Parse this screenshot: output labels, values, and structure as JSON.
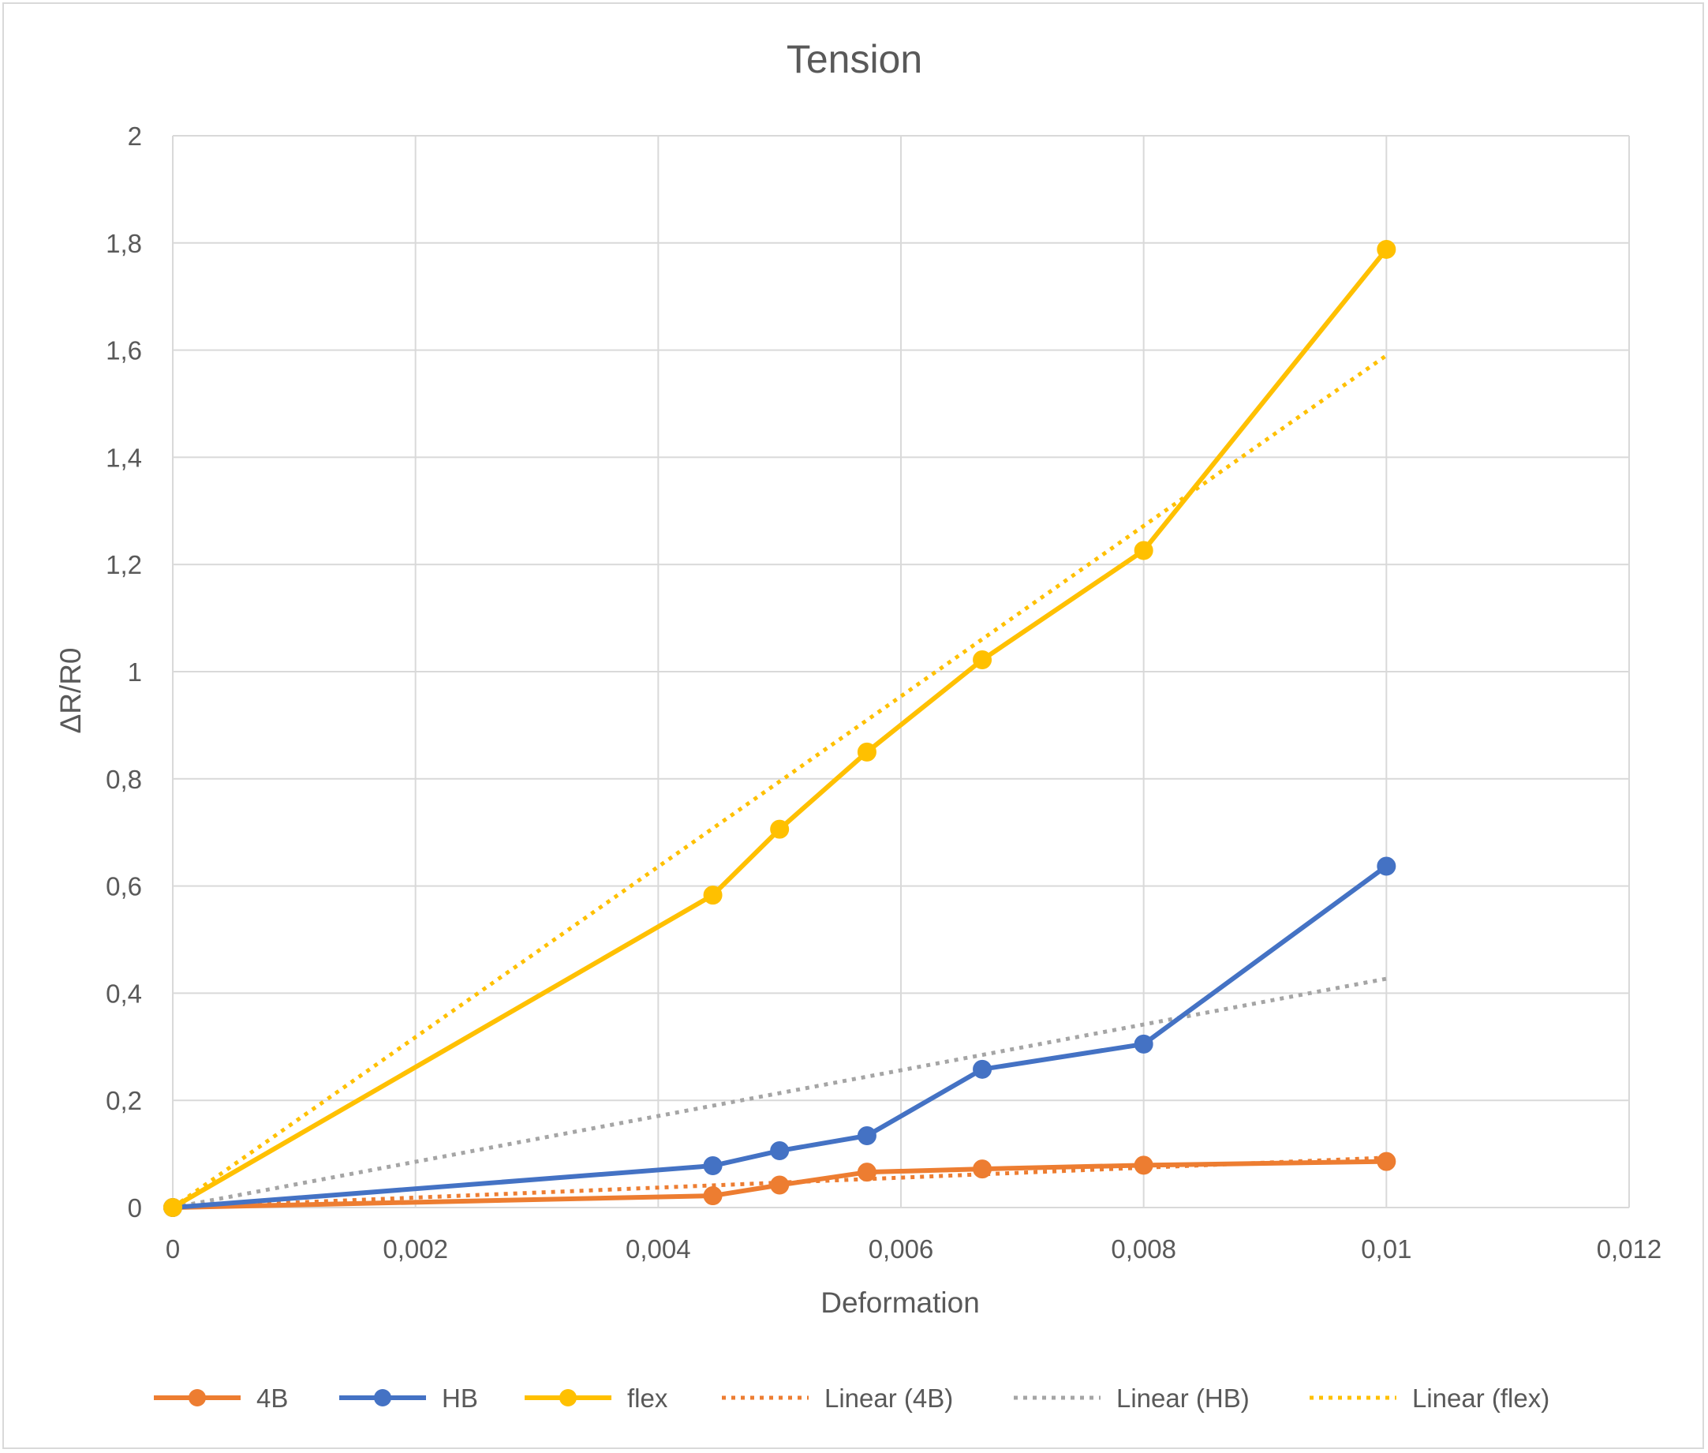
{
  "chart_data": {
    "type": "line",
    "title": "Tension",
    "xlabel": "Deformation",
    "ylabel": "ΔR/R0",
    "xlim": [
      0,
      0.012
    ],
    "ylim": [
      0,
      2
    ],
    "x_ticks": [
      0,
      0.002,
      0.004,
      0.006,
      0.008,
      0.01,
      0.012
    ],
    "x_tick_labels": [
      "0",
      "0,002",
      "0,004",
      "0,006",
      "0,008",
      "0,01",
      "0,012"
    ],
    "y_ticks": [
      0,
      0.2,
      0.4,
      0.6,
      0.8,
      1,
      1.2,
      1.4,
      1.6,
      1.8,
      2
    ],
    "y_tick_labels": [
      "0",
      "0,2",
      "0,4",
      "0,6",
      "0,8",
      "1",
      "1,2",
      "1,4",
      "1,6",
      "1,8",
      "2"
    ],
    "grid": true,
    "legend_position": "bottom",
    "series": [
      {
        "name": "4B",
        "color": "#ed7d31",
        "style": "solid-markers",
        "points": [
          [
            0,
            0
          ],
          [
            0.00445,
            0.022
          ],
          [
            0.005,
            0.042
          ],
          [
            0.00572,
            0.066
          ],
          [
            0.00667,
            0.072
          ],
          [
            0.008,
            0.079
          ],
          [
            0.01,
            0.086
          ]
        ]
      },
      {
        "name": "HB",
        "color": "#4472c4",
        "style": "solid-markers",
        "points": [
          [
            0,
            0
          ],
          [
            0.00445,
            0.078
          ],
          [
            0.005,
            0.106
          ],
          [
            0.00572,
            0.134
          ],
          [
            0.00667,
            0.258
          ],
          [
            0.008,
            0.305
          ],
          [
            0.01,
            0.637
          ]
        ]
      },
      {
        "name": "flex",
        "color": "#ffc000",
        "style": "solid-markers",
        "points": [
          [
            0,
            0
          ],
          [
            0.00445,
            0.583
          ],
          [
            0.005,
            0.706
          ],
          [
            0.00572,
            0.85
          ],
          [
            0.00667,
            1.022
          ],
          [
            0.008,
            1.226
          ],
          [
            0.01,
            1.788
          ]
        ]
      },
      {
        "name": "Linear (4B)",
        "color": "#ed7d31",
        "style": "dotted",
        "points": [
          [
            0,
            0
          ],
          [
            0.01,
            0.093
          ]
        ]
      },
      {
        "name": "Linear (HB)",
        "color": "#a5a5a5",
        "style": "dotted",
        "points": [
          [
            0,
            0
          ],
          [
            0.01,
            0.427
          ]
        ]
      },
      {
        "name": "Linear (flex)",
        "color": "#ffc000",
        "style": "dotted",
        "points": [
          [
            0,
            0
          ],
          [
            0.01,
            1.59
          ]
        ]
      }
    ]
  }
}
